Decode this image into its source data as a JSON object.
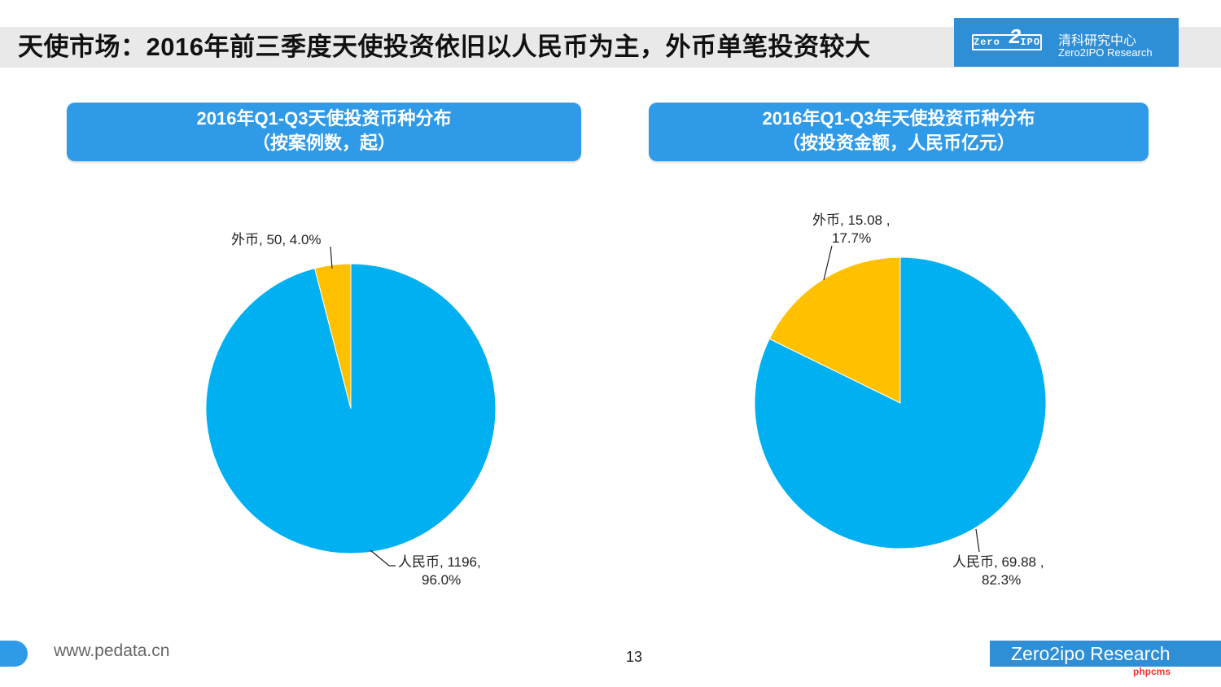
{
  "header": {
    "title": "天使市场：2016年前三季度天使投资依旧以人民币为主，外币单笔投资较大",
    "logo_mark": "Zero",
    "logo_mark_end": "IPO",
    "logo_two": "2",
    "logo_cn": "清科研究中心",
    "logo_en": "Zero2IPO Research"
  },
  "chart_data": [
    {
      "type": "pie",
      "title": "2016年Q1-Q3天使投资币种分布",
      "subtitle": "（按案例数，起）",
      "slices": [
        {
          "name": "人民币",
          "value": 1196,
          "percent": "96.0%",
          "color": "#00b0f0",
          "label_line1": "人民币, 1196,",
          "label_line2": "96.0%"
        },
        {
          "name": "外币",
          "value": 50,
          "percent": "4.0%",
          "color": "#ffc000",
          "label_line1": "外币, 50, 4.0%",
          "label_line2": ""
        }
      ]
    },
    {
      "type": "pie",
      "title": "2016年Q1-Q3年天使投资币种分布",
      "subtitle": "（按投资金额，人民币亿元）",
      "slices": [
        {
          "name": "人民币",
          "value": 69.88,
          "percent": "82.3%",
          "color": "#00b0f0",
          "label_line1": "人民币, 69.88 ,",
          "label_line2": "82.3%"
        },
        {
          "name": "外币",
          "value": 15.08,
          "percent": "17.7%",
          "color": "#ffc000",
          "label_line1": "外币, 15.08 ,",
          "label_line2": "17.7%"
        }
      ]
    }
  ],
  "footer": {
    "url": "www.pedata.cn",
    "page": "13",
    "brand": "Zero2ipo Research",
    "watermark": "phpcms"
  }
}
